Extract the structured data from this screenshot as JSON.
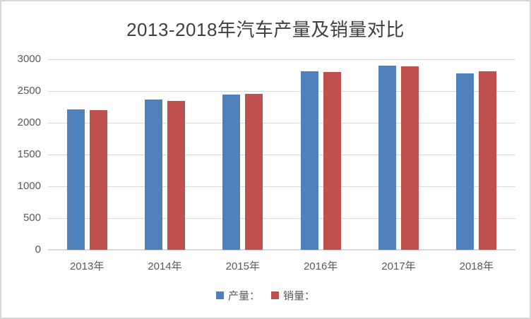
{
  "chart_data": {
    "type": "bar",
    "title": "2013-2018年汽车产量及销量对比",
    "categories": [
      "2013年",
      "2014年",
      "2015年",
      "2016年",
      "2017年",
      "2018年"
    ],
    "series": [
      {
        "name": "产量：",
        "color": "#4F81BD",
        "values": [
          2212,
          2372,
          2450,
          2812,
          2902,
          2781
        ]
      },
      {
        "name": "销量：",
        "color": "#C0504D",
        "values": [
          2198,
          2349,
          2460,
          2803,
          2888,
          2808
        ]
      }
    ],
    "xlabel": "",
    "ylabel": "",
    "ylim": [
      0,
      3000
    ],
    "yticks": [
      0,
      500,
      1000,
      1500,
      2000,
      2500,
      3000
    ],
    "grid": true,
    "gridline_color": "#d9d9d9",
    "axis_text_color": "#595959",
    "title_color": "#3f3f3f",
    "background_color": "#ffffff",
    "legend_position": "bottom"
  }
}
